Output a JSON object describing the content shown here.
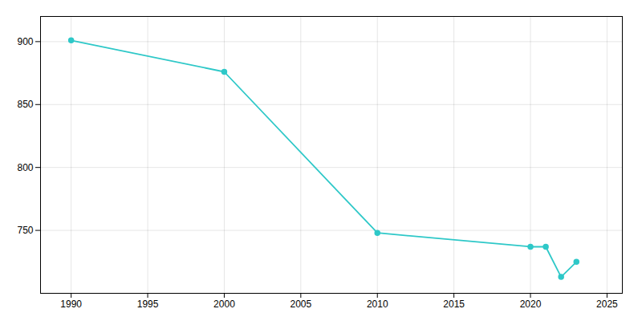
{
  "chart_data": {
    "type": "line",
    "x": [
      1990,
      2000,
      2010,
      2020,
      2021,
      2022,
      2023
    ],
    "values": [
      901,
      876,
      748,
      737,
      737,
      713,
      725
    ],
    "color": "#2ec8c8",
    "marker": "circle",
    "xlim": [
      1988,
      2026
    ],
    "ylim": [
      700,
      920
    ],
    "xticks": [
      1990,
      1995,
      2000,
      2005,
      2010,
      2015,
      2020,
      2025
    ],
    "yticks": [
      750,
      800,
      850,
      900
    ],
    "grid": true
  }
}
